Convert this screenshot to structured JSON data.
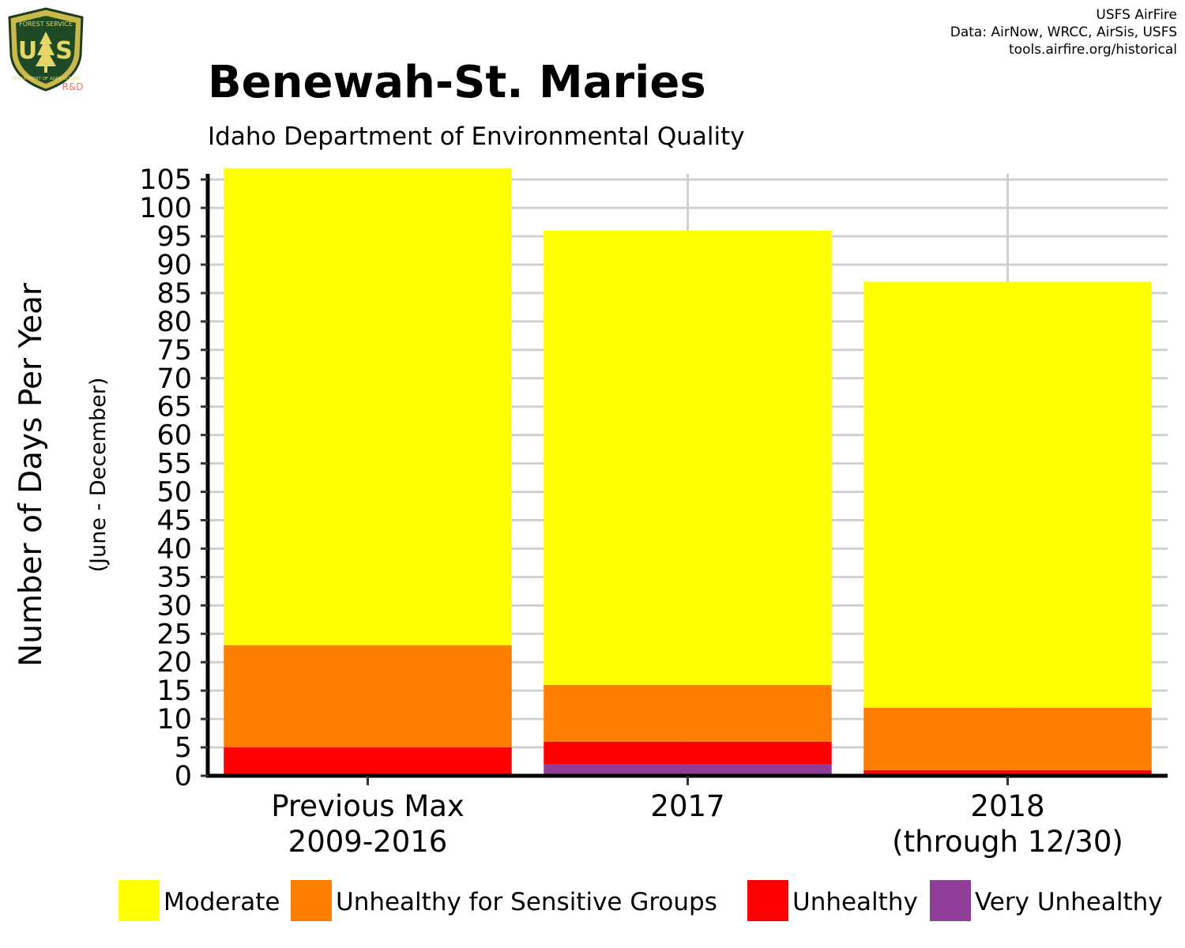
{
  "logo": {
    "shield_text": "U S",
    "top_text": "FOREST SERVICE",
    "bottom_text": "DEPARTMENT OF AGRICULTURE",
    "badge": "R&D"
  },
  "credits": [
    "USFS AirFire",
    "Data: AirNow, WRCC, AirSis, USFS",
    "tools.airfire.org/historical"
  ],
  "colors": {
    "moderate": "#FFFF00",
    "usg": "#FF7E00",
    "unhealthy": "#FF0000",
    "very_unhealthy": "#8F3F97",
    "grid": "#d0d0d0"
  },
  "chart_data": {
    "type": "bar",
    "stacked": true,
    "title": "Benewah-St. Maries",
    "subtitle": "Idaho Department of Environmental Quality",
    "ylabel": "Number of Days Per Year",
    "ylabel_sub": "(June - December)",
    "xlabel": "",
    "ylim": [
      0,
      106
    ],
    "yticks": [
      0,
      5,
      10,
      15,
      20,
      25,
      30,
      35,
      40,
      45,
      50,
      55,
      60,
      65,
      70,
      75,
      80,
      85,
      90,
      95,
      100,
      105
    ],
    "grid": true,
    "legend_position": "bottom",
    "categories": [
      [
        "Previous Max",
        "2009-2016"
      ],
      [
        "2017"
      ],
      [
        "2018",
        "(through 12/30)"
      ]
    ],
    "series": [
      {
        "name": "Very Unhealthy",
        "color": "#8F3F97",
        "values": [
          0,
          2,
          0
        ]
      },
      {
        "name": "Unhealthy",
        "color": "#FF0000",
        "values": [
          5,
          4,
          1
        ]
      },
      {
        "name": "Unhealthy for Sensitive Groups",
        "color": "#FF7E00",
        "values": [
          18,
          10,
          11
        ]
      },
      {
        "name": "Moderate",
        "color": "#FFFF00",
        "values": [
          84,
          80,
          75
        ]
      }
    ],
    "legend_order": [
      "Moderate",
      "Unhealthy for Sensitive Groups",
      "Unhealthy",
      "Very Unhealthy"
    ]
  }
}
